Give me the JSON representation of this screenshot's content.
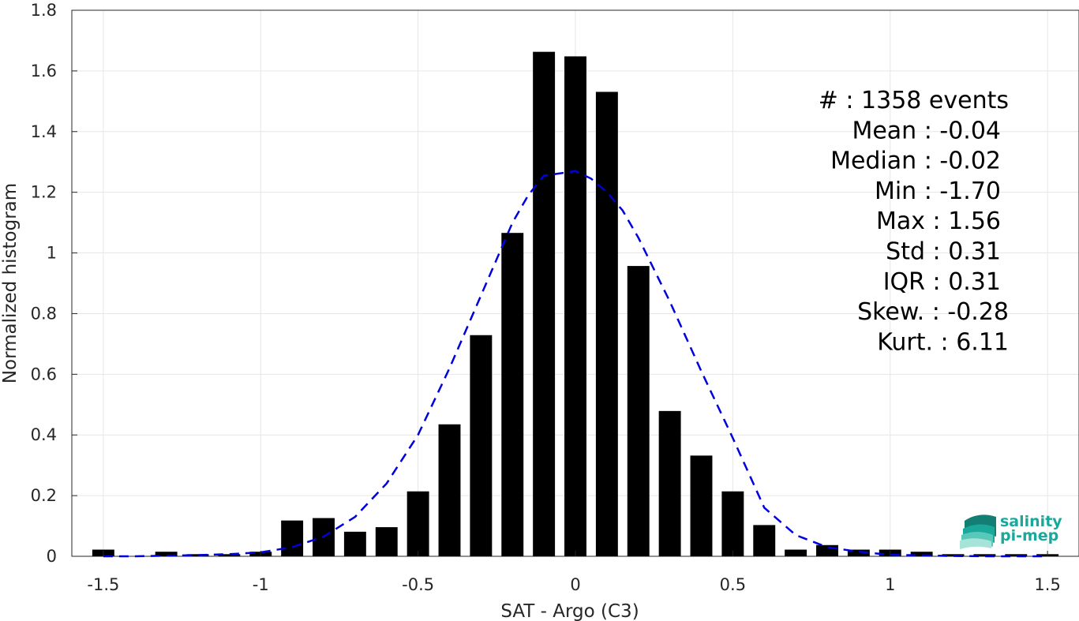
{
  "chart_data": {
    "type": "bar",
    "xlabel": "SAT - Argo (C3)",
    "ylabel": "Normalized histogram",
    "xlim": [
      -1.6,
      1.6
    ],
    "ylim": [
      0,
      1.8
    ],
    "grid": true,
    "xticks": [
      -1.5,
      -1,
      -0.5,
      0,
      0.5,
      1,
      1.5
    ],
    "xtick_labels": [
      "-1.5",
      "-1",
      "-0.5",
      "0",
      "0.5",
      "1",
      "1.5"
    ],
    "yticks": [
      0,
      0.2,
      0.4,
      0.6,
      0.8,
      1,
      1.2,
      1.4,
      1.6,
      1.8
    ],
    "ytick_labels": [
      "0",
      "0.2",
      "0.4",
      "0.6",
      "0.8",
      "1",
      "1.2",
      "1.4",
      "1.6",
      "1.8"
    ],
    "bar_color": "#000000",
    "bins": [
      -1.5,
      -1.4,
      -1.3,
      -1.2,
      -1.1,
      -1.0,
      -0.9,
      -0.8,
      -0.7,
      -0.6,
      -0.5,
      -0.4,
      -0.3,
      -0.2,
      -0.1,
      0.0,
      0.1,
      0.2,
      0.3,
      0.4,
      0.5,
      0.6,
      0.7,
      0.8,
      0.9,
      1.0,
      1.1,
      1.2,
      1.3,
      1.4,
      1.5
    ],
    "values": [
      0.022,
      0.0,
      0.015,
      0.007,
      0.007,
      0.015,
      0.118,
      0.126,
      0.081,
      0.096,
      0.214,
      0.435,
      0.729,
      1.066,
      1.663,
      1.648,
      1.531,
      0.957,
      0.479,
      0.332,
      0.214,
      0.103,
      0.022,
      0.037,
      0.022,
      0.022,
      0.015,
      0.007,
      0.007,
      0.007,
      0.007
    ],
    "fit_curve": {
      "style": "dashed",
      "color": "#0000dd",
      "x": [
        -1.5,
        -1.4,
        -1.3,
        -1.2,
        -1.1,
        -1.0,
        -0.9,
        -0.8,
        -0.7,
        -0.6,
        -0.5,
        -0.4,
        -0.3,
        -0.2,
        -0.15,
        -0.1,
        -0.05,
        0.0,
        0.05,
        0.1,
        0.15,
        0.2,
        0.3,
        0.4,
        0.5,
        0.6,
        0.7,
        0.8,
        0.9,
        1.0,
        1.1,
        1.2,
        1.3,
        1.4,
        1.5
      ],
      "y": [
        0.0,
        0.0,
        0.002,
        0.004,
        0.007,
        0.013,
        0.03,
        0.065,
        0.13,
        0.24,
        0.4,
        0.62,
        0.86,
        1.1,
        1.19,
        1.255,
        1.262,
        1.27,
        1.245,
        1.2,
        1.14,
        1.05,
        0.84,
        0.61,
        0.39,
        0.16,
        0.07,
        0.03,
        0.015,
        0.005,
        0.003,
        0.001,
        0.0,
        0.0,
        0.0
      ]
    }
  },
  "stats": [
    {
      "text": "#  : 1358 events",
      "anchor": "end"
    },
    {
      "text": "Mean : -0.04",
      "anchor": "end"
    },
    {
      "text": "Median : -0.02",
      "anchor": "end"
    },
    {
      "text": "Min : -1.70",
      "anchor": "end"
    },
    {
      "text": "Max : 1.56",
      "anchor": "end"
    },
    {
      "text": "Std : 0.31",
      "anchor": "end"
    },
    {
      "text": "IQR : 0.31",
      "anchor": "end"
    },
    {
      "text": "Skew. : -0.28",
      "anchor": "end"
    },
    {
      "text": "Kurt. : 6.11",
      "anchor": "end"
    }
  ],
  "logo": {
    "line1": "salinity",
    "line2": "pi-mep",
    "icon": "wave-layers-icon",
    "color": "#1aa89a"
  }
}
